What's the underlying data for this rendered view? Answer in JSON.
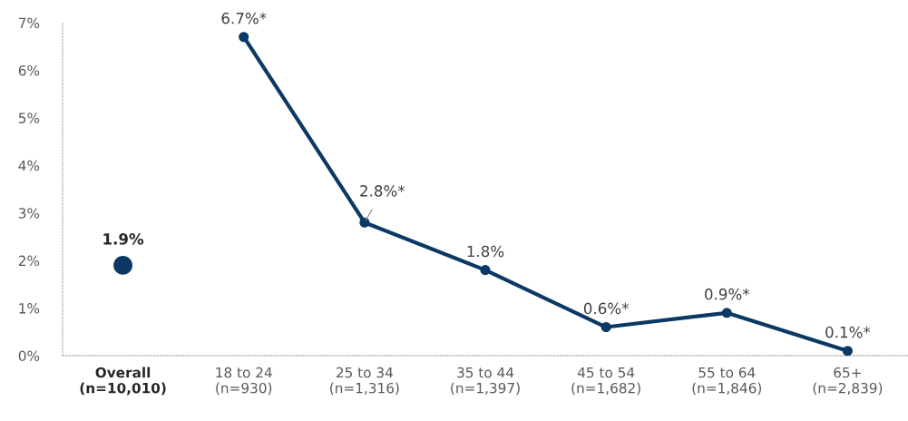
{
  "chart_data": {
    "type": "line",
    "categories": [
      "Overall\n(n=10,010)",
      "18 to 24\n(n=930)",
      "25 to 34\n(n=1,316)",
      "35 to 44\n(n=1,397)",
      "45 to 54\n(n=1,682)",
      "55 to 64\n(n=1,846)",
      "65+\n(n=2,839)"
    ],
    "ylim": [
      0,
      7
    ],
    "yticks": [
      {
        "value": 0,
        "label": "0%"
      },
      {
        "value": 1,
        "label": "1%"
      },
      {
        "value": 2,
        "label": "2%"
      },
      {
        "value": 3,
        "label": "3%"
      },
      {
        "value": 4,
        "label": "4%"
      },
      {
        "value": 5,
        "label": "5%"
      },
      {
        "value": 6,
        "label": "6%"
      },
      {
        "value": 7,
        "label": "7%"
      }
    ],
    "marker": "circle",
    "series": [
      {
        "type": "scatter",
        "color": "#0b3864",
        "values": [
          1.9,
          null,
          null,
          null,
          null,
          null,
          null
        ],
        "value_labels": [
          "1.9%",
          null,
          null,
          null,
          null,
          null,
          null
        ]
      },
      {
        "color": "#0b3864",
        "values": [
          null,
          6.7,
          2.8,
          1.8,
          0.6,
          0.9,
          0.1
        ],
        "value_labels": [
          null,
          "6.7%*",
          "2.8%*",
          "1.8%",
          "0.6%*",
          "0.9%*",
          "0.1%*"
        ]
      }
    ]
  }
}
